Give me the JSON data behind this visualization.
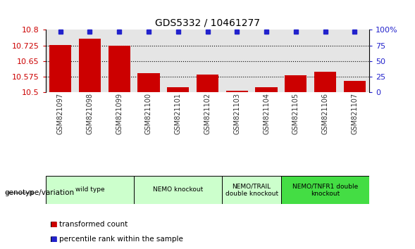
{
  "title": "GDS5332 / 10461277",
  "samples": [
    "GSM821097",
    "GSM821098",
    "GSM821099",
    "GSM821100",
    "GSM821101",
    "GSM821102",
    "GSM821103",
    "GSM821104",
    "GSM821105",
    "GSM821106",
    "GSM821107"
  ],
  "bar_values": [
    10.727,
    10.757,
    10.725,
    10.593,
    10.523,
    10.583,
    10.508,
    10.523,
    10.582,
    10.597,
    10.555
  ],
  "percentile_values": [
    97,
    97,
    97,
    97,
    97,
    97,
    97,
    97,
    97,
    97,
    97
  ],
  "ymin": 10.5,
  "ymax": 10.8,
  "yticks": [
    10.5,
    10.575,
    10.65,
    10.725,
    10.8
  ],
  "ytick_labels": [
    "10.5",
    "10.575",
    "10.65",
    "10.725",
    "10.8"
  ],
  "right_yticks": [
    0,
    25,
    50,
    75,
    100
  ],
  "right_ytick_labels": [
    "0",
    "25",
    "50",
    "75",
    "100%"
  ],
  "bar_color": "#cc0000",
  "percentile_color": "#2222cc",
  "col_bg_color": "#cccccc",
  "groups": [
    {
      "label": "wild type",
      "start": 0,
      "end": 3,
      "color": "#ccffcc"
    },
    {
      "label": "NEMO knockout",
      "start": 3,
      "end": 6,
      "color": "#ccffcc"
    },
    {
      "label": "NEMO/TRAIL\ndouble knockout",
      "start": 6,
      "end": 8,
      "color": "#ccffcc"
    },
    {
      "label": "NEMO/TNFR1 double\nknockout",
      "start": 8,
      "end": 11,
      "color": "#44dd44"
    }
  ],
  "legend_red_label": "transformed count",
  "legend_blue_label": "percentile rank within the sample",
  "xlabel_label": "genotype/variation"
}
